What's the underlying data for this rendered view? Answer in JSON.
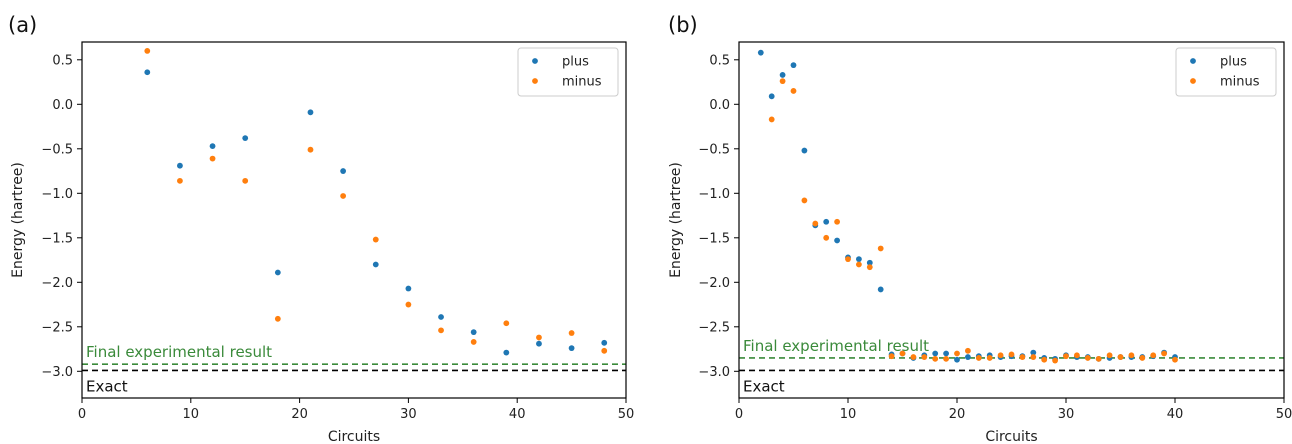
{
  "chart_data": [
    {
      "panel_label": "(a)",
      "type": "scatter",
      "xlabel": "Circuits",
      "ylabel": "Energy (hartree)",
      "xlim": [
        0,
        50
      ],
      "ylim": [
        -3.3,
        0.7
      ],
      "xticks": [
        "0",
        "10",
        "20",
        "30",
        "40",
        "50"
      ],
      "yticks": [
        "0.5",
        "0.0",
        "−0.5",
        "−1.0",
        "−1.5",
        "−2.0",
        "−2.5",
        "−3.0"
      ],
      "grid": false,
      "legend_position": "top-right",
      "series": [
        {
          "name": "plus",
          "color": "#1f77b4",
          "x": [
            6,
            9,
            12,
            15,
            18,
            21,
            24,
            27,
            30,
            33,
            36,
            39,
            42,
            45,
            48
          ],
          "y": [
            0.36,
            -0.69,
            -0.47,
            -0.38,
            -1.89,
            -0.09,
            -0.75,
            -1.8,
            -2.07,
            -2.39,
            -2.56,
            -2.79,
            -2.69,
            -2.74,
            -2.68
          ]
        },
        {
          "name": "minus",
          "color": "#ff7f0e",
          "x": [
            6,
            9,
            12,
            15,
            18,
            21,
            24,
            27,
            30,
            33,
            36,
            39,
            42,
            45,
            48
          ],
          "y": [
            0.6,
            -0.86,
            -0.61,
            -0.86,
            -2.41,
            -0.51,
            -1.03,
            -1.52,
            -2.25,
            -2.54,
            -2.67,
            -2.46,
            -2.62,
            -2.57,
            -2.77
          ]
        }
      ],
      "reference_lines": [
        {
          "label": "Final experimental result",
          "y": -2.92,
          "style": "dashed",
          "color": "#3a8a3a"
        },
        {
          "label": "Exact",
          "y": -2.99,
          "style": "dashed",
          "color": "#000000"
        }
      ]
    },
    {
      "panel_label": "(b)",
      "type": "scatter",
      "xlabel": "Circuits",
      "ylabel": "Energy (hartree)",
      "xlim": [
        0,
        50
      ],
      "ylim": [
        -3.3,
        0.7
      ],
      "xticks": [
        "0",
        "10",
        "20",
        "30",
        "40",
        "50"
      ],
      "yticks": [
        "0.5",
        "0.0",
        "−0.5",
        "−1.0",
        "−1.5",
        "−2.0",
        "−2.5",
        "−3.0"
      ],
      "grid": false,
      "legend_position": "top-right",
      "series": [
        {
          "name": "plus",
          "color": "#1f77b4",
          "x": [
            2,
            3,
            4,
            5,
            6,
            7,
            8,
            9,
            10,
            11,
            12,
            13,
            14,
            15,
            16,
            17,
            18,
            19,
            20,
            21,
            22,
            23,
            24,
            25,
            26,
            27,
            28,
            29,
            30,
            31,
            32,
            33,
            34,
            35,
            36,
            37,
            38,
            39,
            40
          ],
          "y": [
            0.58,
            0.09,
            0.33,
            0.44,
            -0.52,
            -1.36,
            -1.32,
            -1.53,
            -1.72,
            -1.74,
            -1.78,
            -2.08,
            -2.81,
            -2.8,
            -2.85,
            -2.82,
            -2.8,
            -2.8,
            -2.87,
            -2.84,
            -2.83,
            -2.82,
            -2.84,
            -2.83,
            -2.83,
            -2.79,
            -2.85,
            -2.86,
            -2.82,
            -2.84,
            -2.84,
            -2.86,
            -2.85,
            -2.84,
            -2.84,
            -2.84,
            -2.83,
            -2.79,
            -2.84
          ]
        },
        {
          "name": "minus",
          "color": "#ff7f0e",
          "x": [
            3,
            4,
            5,
            6,
            7,
            8,
            9,
            10,
            11,
            12,
            13,
            14,
            15,
            16,
            17,
            18,
            19,
            20,
            21,
            22,
            23,
            24,
            25,
            26,
            27,
            28,
            29,
            30,
            31,
            32,
            33,
            34,
            35,
            36,
            37,
            38,
            39,
            40
          ],
          "y": [
            -0.17,
            0.26,
            0.15,
            -1.08,
            -1.34,
            -1.5,
            -1.32,
            -1.74,
            -1.8,
            -1.83,
            -1.62,
            -2.83,
            -2.8,
            -2.84,
            -2.84,
            -2.86,
            -2.86,
            -2.8,
            -2.77,
            -2.85,
            -2.85,
            -2.82,
            -2.81,
            -2.84,
            -2.84,
            -2.87,
            -2.88,
            -2.83,
            -2.82,
            -2.85,
            -2.86,
            -2.82,
            -2.84,
            -2.82,
            -2.85,
            -2.82,
            -2.8,
            -2.87
          ]
        }
      ],
      "reference_lines": [
        {
          "label": "Final experimental result",
          "y": -2.85,
          "style": "dashed",
          "color": "#3a8a3a"
        },
        {
          "label": "Exact",
          "y": -2.99,
          "style": "dashed",
          "color": "#000000"
        }
      ]
    }
  ]
}
